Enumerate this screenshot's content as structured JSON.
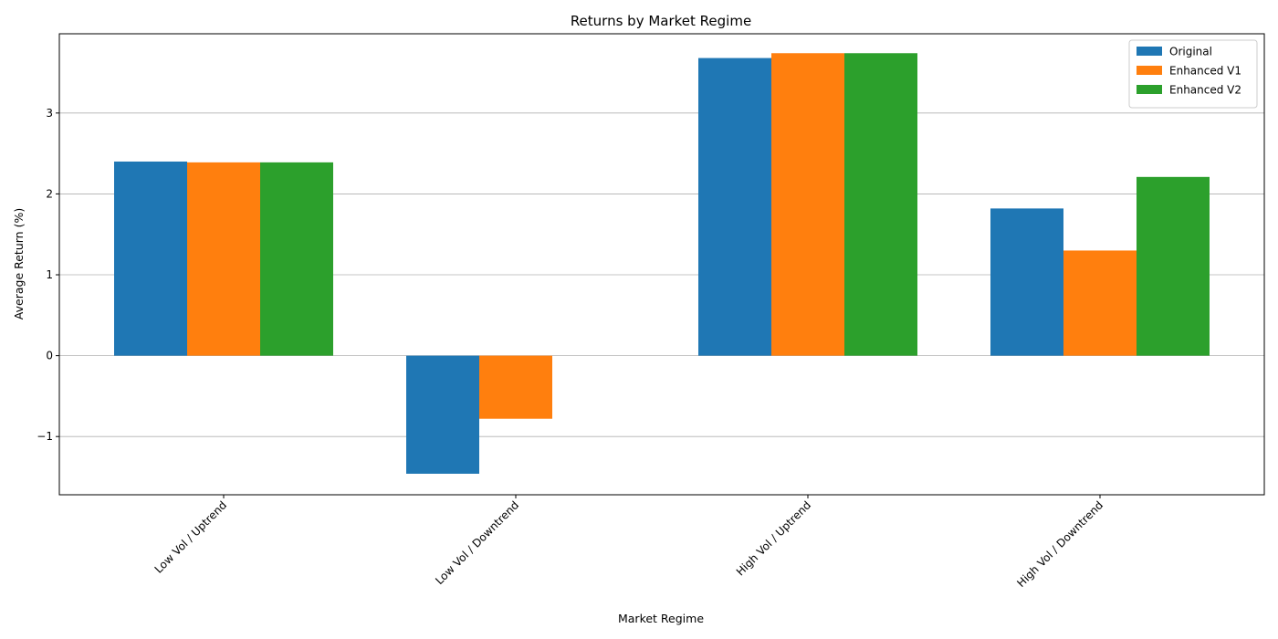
{
  "chart_data": {
    "type": "bar",
    "title": "Returns by Market Regime",
    "xlabel": "Market Regime",
    "ylabel": "Average Return (%)",
    "categories": [
      "Low Vol / Uptrend",
      "Low Vol / Downtrend",
      "High Vol / Uptrend",
      "High Vol / Downtrend"
    ],
    "series": [
      {
        "name": "Original",
        "color": "#1f77b4",
        "values": [
          2.4,
          -1.46,
          3.68,
          1.82
        ]
      },
      {
        "name": "Enhanced V1",
        "color": "#ff7f0e",
        "values": [
          2.39,
          -0.78,
          3.74,
          1.3
        ]
      },
      {
        "name": "Enhanced V2",
        "color": "#2ca02c",
        "values": [
          2.39,
          0,
          3.74,
          2.21
        ]
      }
    ],
    "ylim": [
      -1.72,
      3.98
    ],
    "yticks": [
      -1,
      0,
      1,
      2,
      3
    ],
    "ytick_labels": [
      "−1",
      "0",
      "1",
      "2",
      "3"
    ],
    "grid": "y",
    "legend_position": "top-right",
    "xtick_rotation": 45
  }
}
